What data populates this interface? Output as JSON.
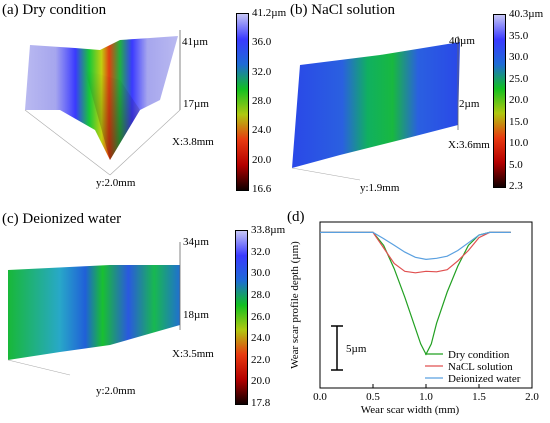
{
  "panels": {
    "a": {
      "label": "(a)  Dry condition",
      "z_max": "41µm",
      "z_mid": "17µm",
      "x_len": "X:3.8mm",
      "y_len": "y:2.0mm",
      "colorbar": [
        "41.2µm",
        "36.0",
        "32.0",
        "28.0",
        "24.0",
        "20.0",
        "16.6"
      ],
      "colors": [
        "#c7c7f5",
        "#3a3aff",
        "#1e6bd6",
        "#12c020",
        "#b0c810",
        "#e83a10",
        "#b40000",
        "#100000"
      ]
    },
    "b": {
      "label": "(b)  NaCl solution",
      "z_max": "40µm",
      "z_mid": "2µm",
      "x_len": "X:3.6mm",
      "y_len": "y:1.9mm",
      "colorbar": [
        "40.3µm",
        "35.0",
        "30.0",
        "25.0",
        "20.0",
        "15.0",
        "10.0",
        "5.0",
        "2.3"
      ],
      "colors": [
        "#c7c7f5",
        "#3a3aff",
        "#1e6bd6",
        "#12c020",
        "#b0c810",
        "#e83a10",
        "#b40000",
        "#100000"
      ]
    },
    "c": {
      "label": "(c)  Deionized water",
      "z_max": "34µm",
      "z_mid": "18µm",
      "x_len": "X:3.5mm",
      "y_len": "y:2.0mm",
      "colorbar": [
        "33.8µm",
        "32.0",
        "30.0",
        "28.0",
        "26.0",
        "24.0",
        "22.0",
        "20.0",
        "17.8"
      ],
      "colors": [
        "#c7c7f5",
        "#3a3aff",
        "#1e6bd6",
        "#12c020",
        "#b0c810",
        "#e83a10",
        "#b40000",
        "#100000"
      ]
    },
    "d": {
      "label": "(d)"
    }
  },
  "chart_data": {
    "type": "line",
    "xlabel": "Wear scar width (mm)",
    "ylabel": "Wear scar profile depth (µm)",
    "xlim": [
      0,
      2.0
    ],
    "xticks": [
      "0.0",
      "0.5",
      "1.0",
      "1.5",
      "2.0"
    ],
    "ylim": [
      -30,
      2
    ],
    "scale_bar": "5µm",
    "legend_position": "bottom-right",
    "series": [
      {
        "name": "Dry condition",
        "color": "#22a022",
        "x": [
          0.0,
          0.3,
          0.5,
          0.6,
          0.7,
          0.8,
          0.9,
          0.95,
          1.0,
          1.05,
          1.1,
          1.2,
          1.3,
          1.4,
          1.5,
          1.6,
          1.8
        ],
        "y": [
          0,
          0,
          0,
          -2.5,
          -7,
          -12.5,
          -18.5,
          -21.5,
          -23.5,
          -21.5,
          -17.5,
          -11.5,
          -6.5,
          -2.5,
          -0.5,
          0,
          0
        ]
      },
      {
        "name": "NaCL solution",
        "color": "#e05050",
        "x": [
          0.0,
          0.3,
          0.5,
          0.6,
          0.7,
          0.8,
          0.9,
          1.0,
          1.1,
          1.2,
          1.3,
          1.4,
          1.5,
          1.6,
          1.8
        ],
        "y": [
          0,
          0,
          0,
          -3,
          -6,
          -7.5,
          -7.8,
          -7.5,
          -7.6,
          -7.2,
          -5.5,
          -3.5,
          -1,
          0,
          0
        ]
      },
      {
        "name": "Deionized water",
        "color": "#5aa0e0",
        "x": [
          0.0,
          0.3,
          0.5,
          0.6,
          0.7,
          0.8,
          0.9,
          1.0,
          1.1,
          1.2,
          1.3,
          1.4,
          1.5,
          1.6,
          1.8
        ],
        "y": [
          0,
          0,
          0,
          -1.2,
          -2.5,
          -3.8,
          -4.8,
          -5.2,
          -5.0,
          -4.6,
          -3.5,
          -2,
          -0.5,
          0,
          0
        ]
      }
    ]
  }
}
